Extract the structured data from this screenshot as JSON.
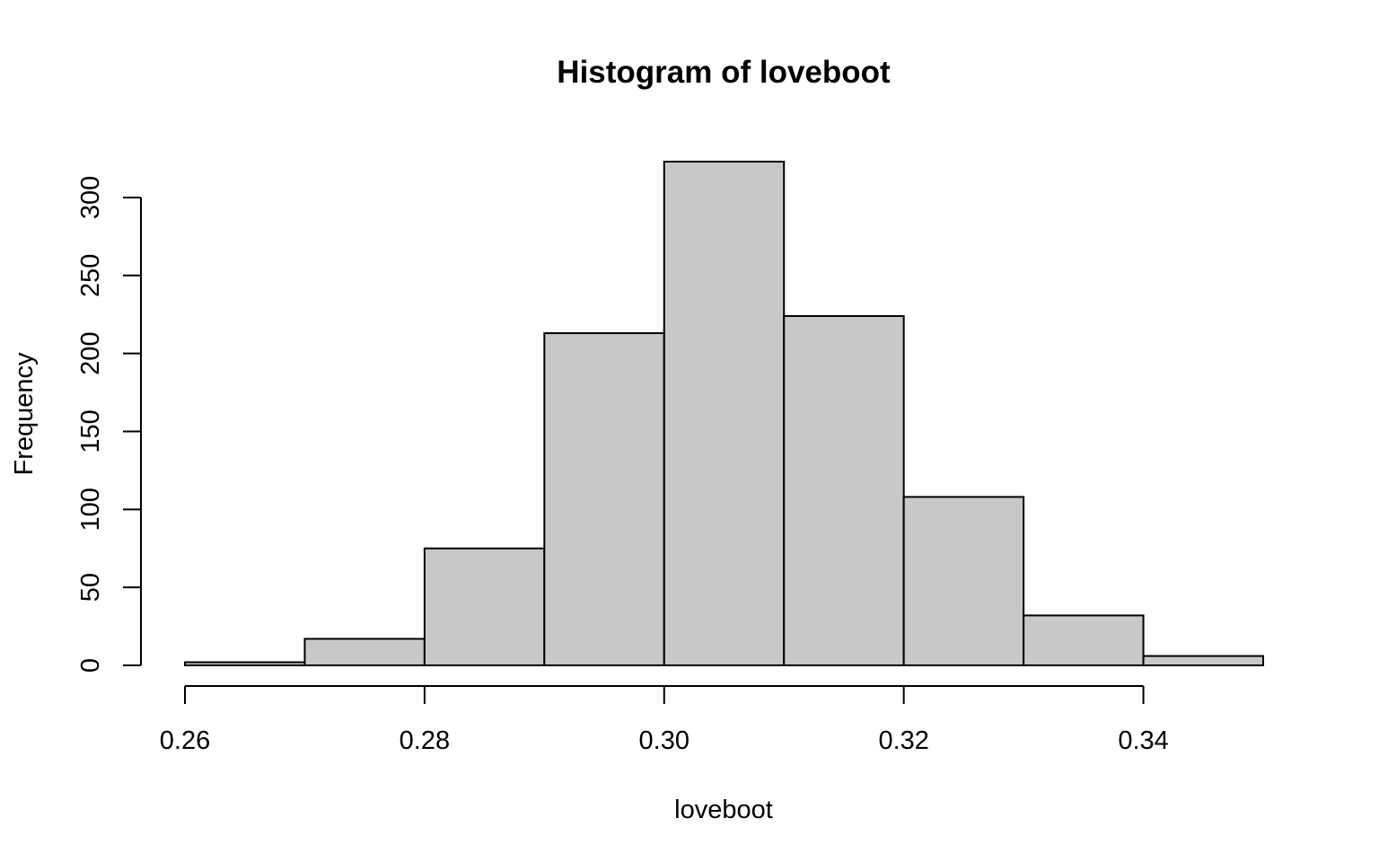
{
  "chart_data": {
    "type": "bar",
    "title": "Histogram of loveboot",
    "xlabel": "loveboot",
    "ylabel": "Frequency",
    "bins": [
      {
        "start": 0.26,
        "end": 0.27,
        "value": 2
      },
      {
        "start": 0.27,
        "end": 0.28,
        "value": 17
      },
      {
        "start": 0.28,
        "end": 0.29,
        "value": 75
      },
      {
        "start": 0.29,
        "end": 0.3,
        "value": 213
      },
      {
        "start": 0.3,
        "end": 0.31,
        "value": 323
      },
      {
        "start": 0.31,
        "end": 0.32,
        "value": 224
      },
      {
        "start": 0.32,
        "end": 0.33,
        "value": 108
      },
      {
        "start": 0.33,
        "end": 0.34,
        "value": 32
      },
      {
        "start": 0.34,
        "end": 0.35,
        "value": 6
      }
    ],
    "x_ticks": [
      {
        "value": 0.26,
        "label": "0.26"
      },
      {
        "value": 0.28,
        "label": "0.28"
      },
      {
        "value": 0.3,
        "label": "0.30"
      },
      {
        "value": 0.32,
        "label": "0.32"
      },
      {
        "value": 0.34,
        "label": "0.34"
      }
    ],
    "y_ticks": [
      {
        "value": 0,
        "label": "0"
      },
      {
        "value": 50,
        "label": "50"
      },
      {
        "value": 100,
        "label": "100"
      },
      {
        "value": 150,
        "label": "150"
      },
      {
        "value": 200,
        "label": "200"
      },
      {
        "value": 250,
        "label": "250"
      },
      {
        "value": 300,
        "label": "300"
      }
    ],
    "xlim": [
      0.26,
      0.35
    ],
    "ylim": [
      0,
      323
    ],
    "grid": false,
    "colors": {
      "bar_fill": "#c8c8c8",
      "bar_border": "#000000",
      "axis": "#000000"
    }
  }
}
